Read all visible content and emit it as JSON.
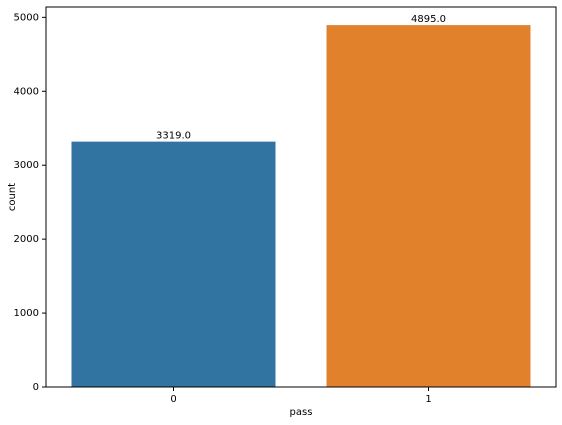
{
  "chart_data": {
    "type": "bar",
    "x_label": "pass",
    "y_label": "count",
    "categories": [
      "0",
      "1"
    ],
    "values": [
      3319,
      4895
    ],
    "value_labels": [
      "3319.0",
      "4895.0"
    ],
    "colors": [
      "#3274a1",
      "#e1812c"
    ],
    "ylim": [
      0,
      5140
    ],
    "yticks": [
      0,
      1000,
      2000,
      3000,
      4000,
      5000
    ],
    "grid": false
  }
}
